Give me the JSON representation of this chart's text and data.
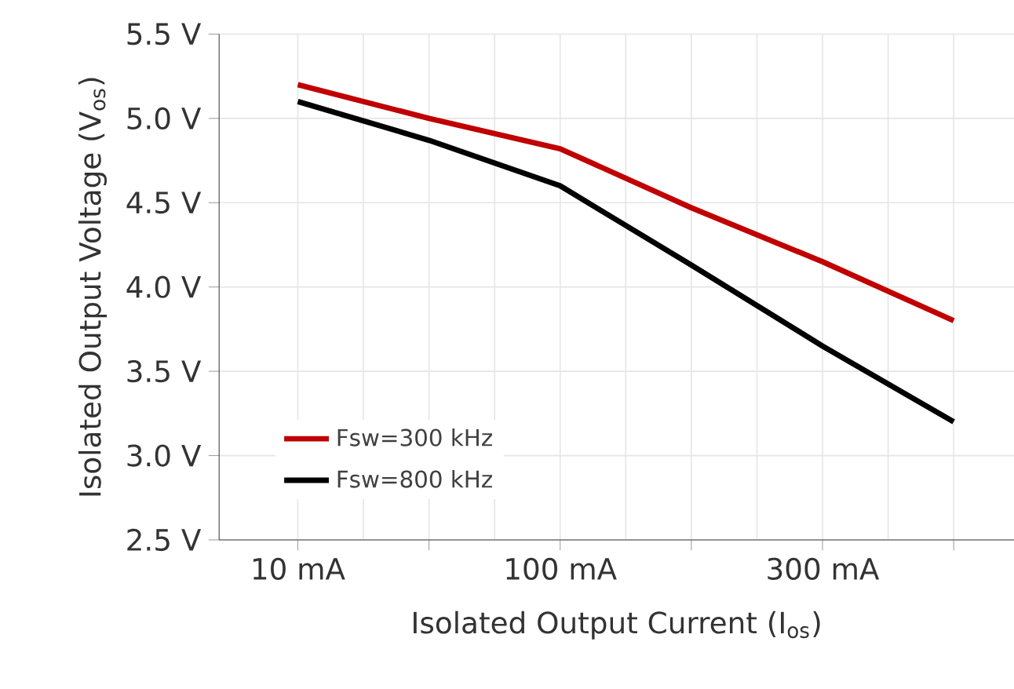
{
  "chart_data": {
    "type": "line",
    "xlabel": "Isolated Output Current (I$_{os}$)",
    "ylabel": "Isolated Output Voltage (V$_{os}$)",
    "ylim": [
      2.5,
      5.5
    ],
    "categories": [
      "10 mA",
      null,
      "100 mA",
      null,
      "300 mA",
      null
    ],
    "yticks": [
      {
        "value": 2.5,
        "label": "2.5 V"
      },
      {
        "value": 3.0,
        "label": "3.0 V"
      },
      {
        "value": 3.5,
        "label": "3.5 V"
      },
      {
        "value": 4.0,
        "label": "4.0 V"
      },
      {
        "value": 4.5,
        "label": "4.5 V"
      },
      {
        "value": 5.0,
        "label": "5.0 V"
      },
      {
        "value": 5.5,
        "label": "5.5 V"
      }
    ],
    "series": [
      {
        "name": "Fsw=300 kHz",
        "color": "#c00000",
        "values": [
          5.2,
          5.0,
          4.82,
          4.47,
          4.15,
          3.8
        ]
      },
      {
        "name": "Fsw=800 kHz",
        "color": "#000000",
        "values": [
          5.1,
          4.87,
          4.6,
          4.13,
          3.65,
          3.2
        ]
      }
    ],
    "grid": true,
    "legend": "bottom left",
    "marker": "none",
    "line_style": "solid"
  }
}
